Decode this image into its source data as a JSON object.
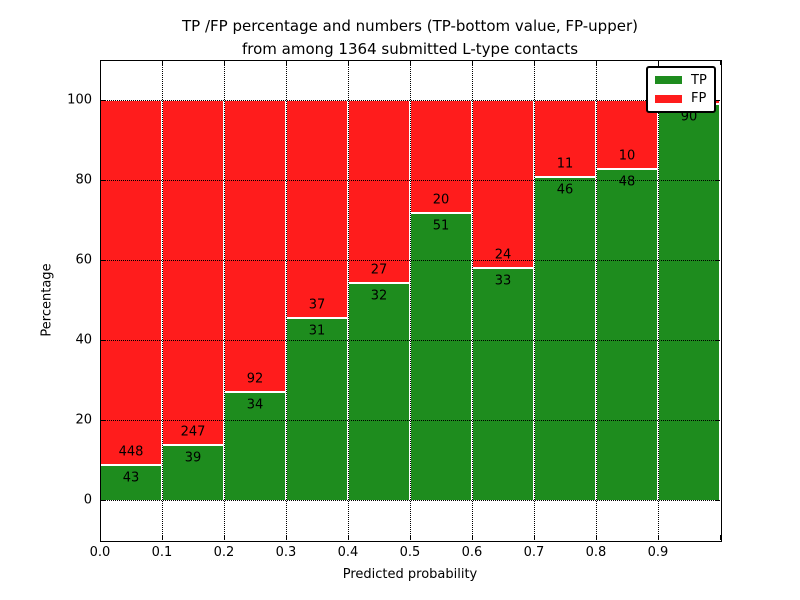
{
  "figure": {
    "title_line1": "TP /FP percentage and numbers (TP-bottom value, FP-upper)",
    "title_line2": "from among 1364 submitted L-type contacts",
    "background_color": "#ffffff"
  },
  "axes": {
    "xlabel": "Predicted probability",
    "ylabel": "Percentage",
    "x_tick_labels": [
      "0.0",
      "0.1",
      "0.2",
      "0.3",
      "0.4",
      "0.5",
      "0.6",
      "0.7",
      "0.8",
      "0.9",
      ""
    ],
    "y_tick_labels": [
      "0",
      "20",
      "40",
      "60",
      "80",
      "100"
    ],
    "y_tick_values": [
      0,
      20,
      40,
      60,
      80,
      100
    ],
    "xlim": [
      0.0,
      1.0
    ],
    "ylim": [
      -10,
      110
    ],
    "grid_style": "dotted",
    "bar_edge_color": "#ffffff"
  },
  "legend": {
    "position": "upper-right",
    "items": [
      {
        "label": "TP",
        "color": "#1e8c1e"
      },
      {
        "label": "FP",
        "color": "#ff1c1c"
      }
    ]
  },
  "chart_data": {
    "type": "bar",
    "stacked": true,
    "normalized_each_bin_to": 100,
    "title": "TP /FP percentage and numbers (TP-bottom value, FP-upper) from among 1364 submitted L-type contacts",
    "xlabel": "Predicted probability",
    "ylabel": "Percentage",
    "total_contacts": 1364,
    "bin_width": 0.1,
    "bin_starts": [
      0.0,
      0.1,
      0.2,
      0.3,
      0.4,
      0.5,
      0.6,
      0.7,
      0.8,
      0.9
    ],
    "bins": [
      "0.0-0.1",
      "0.1-0.2",
      "0.2-0.3",
      "0.3-0.4",
      "0.4-0.5",
      "0.5-0.6",
      "0.6-0.7",
      "0.7-0.8",
      "0.8-0.9",
      "0.9-1.0"
    ],
    "series": [
      {
        "name": "TP",
        "color": "#1e8c1e",
        "counts": [
          43,
          39,
          34,
          31,
          32,
          51,
          33,
          46,
          48,
          90
        ],
        "labels": [
          "43",
          "39",
          "34",
          "31",
          "32",
          "51",
          "33",
          "46",
          "48",
          "90"
        ]
      },
      {
        "name": "FP",
        "color": "#ff1c1c",
        "counts": [
          448,
          247,
          92,
          37,
          27,
          20,
          24,
          11,
          10,
          1
        ],
        "labels": [
          "448",
          "247",
          "92",
          "37",
          "27",
          "20",
          "24",
          "11",
          "10",
          ""
        ]
      }
    ],
    "tp_percent_per_bin": [
      8.8,
      13.6,
      27.0,
      45.6,
      54.2,
      71.8,
      57.9,
      80.7,
      82.8,
      98.9
    ],
    "ylim": [
      -10,
      110
    ],
    "grid": true,
    "legend_position": "upper right"
  }
}
